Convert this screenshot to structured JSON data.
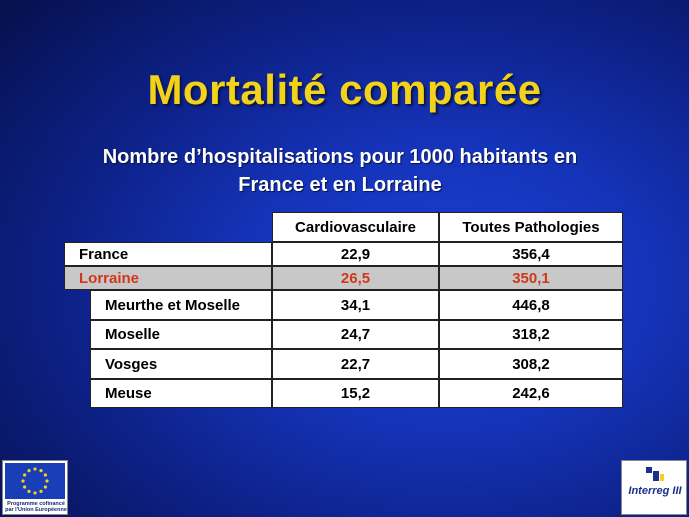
{
  "slide": {
    "title": "Mortalité comparée",
    "subtitle_line1": "Nombre d’hospitalisations pour 1000 habitants en",
    "subtitle_line2": "France et en Lorraine"
  },
  "table": {
    "headers": [
      "Cardiovasculaire",
      "Toutes Pathologies"
    ],
    "rows": [
      {
        "label": "France",
        "cardio": "22,9",
        "toutes": "356,4"
      },
      {
        "label": "Lorraine",
        "cardio": "26,5",
        "toutes": "350,1"
      },
      {
        "label": "Meurthe et Moselle",
        "cardio": "34,1",
        "toutes": "446,8"
      },
      {
        "label": "Moselle",
        "cardio": "24,7",
        "toutes": "318,2"
      },
      {
        "label": "Vosges",
        "cardio": "22,7",
        "toutes": "308,2"
      },
      {
        "label": "Meuse",
        "cardio": "15,2",
        "toutes": "242,6"
      }
    ]
  },
  "logos": {
    "eu_text_line1": "Programme cofinancé",
    "eu_text_line2": "par l'Union Européenne",
    "interreg_text": "Interreg III"
  },
  "colors": {
    "title": "#f2d21a",
    "highlight_row_text": "#d0381c",
    "highlight_row_bg": "#c8c8c8",
    "background": "#1533b8"
  }
}
